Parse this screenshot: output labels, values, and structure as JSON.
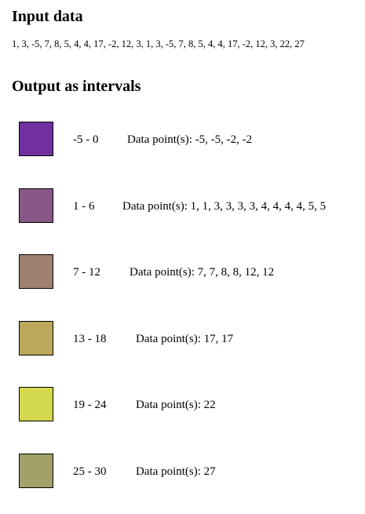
{
  "input": {
    "heading": "Input data",
    "values_text": "1, 3, -5, 7, 8, 5, 4, 4, 17, -2, 12, 3, 1, 3, -5, 7, 8, 5, 4, 4, 17, -2, 12, 3, 22, 27"
  },
  "output": {
    "heading": "Output as intervals",
    "intervals": [
      {
        "range": "-5 - 0",
        "points_label": "Data point(s):",
        "points": "-5, -5, -2, -2",
        "color": "#7030a0"
      },
      {
        "range": "1 - 6",
        "points_label": "Data point(s):",
        "points": "1, 1, 3, 3, 3, 3, 4, 4, 4, 4, 5, 5",
        "color": "#875785"
      },
      {
        "range": "7 - 12",
        "points_label": "Data point(s):",
        "points": "7, 7, 8, 8, 12, 12",
        "color": "#a08070"
      },
      {
        "range": "13 - 18",
        "points_label": "Data point(s):",
        "points": "17, 17",
        "color": "#bba85a"
      },
      {
        "range": "19 - 24",
        "points_label": "Data point(s):",
        "points": "22",
        "color": "#d4d84c"
      },
      {
        "range": "25 - 30",
        "points_label": "Data point(s):",
        "points": "27",
        "color": "#a3a16a"
      }
    ]
  }
}
